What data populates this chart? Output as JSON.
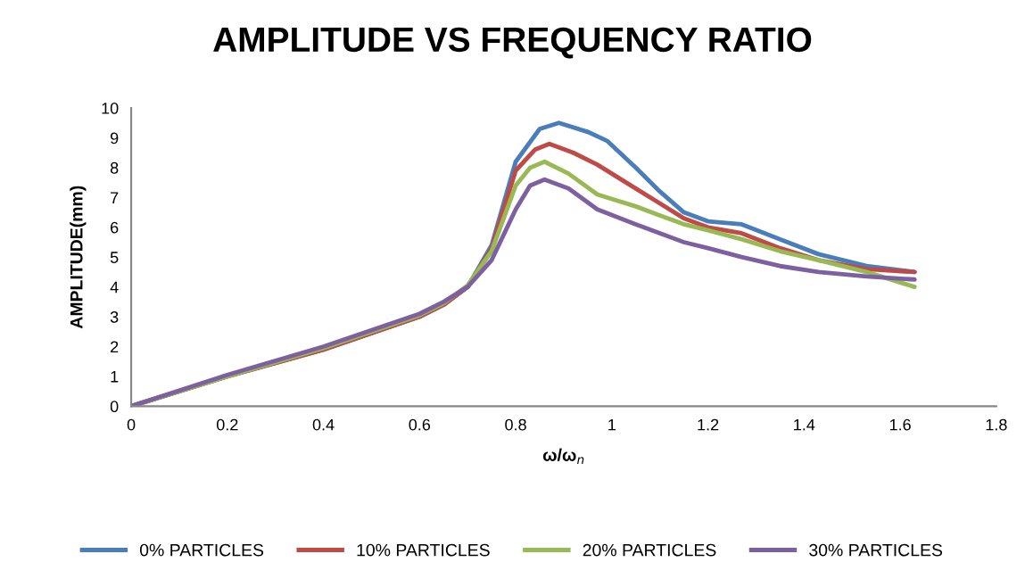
{
  "chart_data": {
    "type": "line",
    "title": "AMPLITUDE VS FREQUENCY RATIO",
    "xlabel": "ω/ω$_{n}$",
    "ylabel": "AMPLITUDE(mm)",
    "xlim": [
      0,
      1.8
    ],
    "xticks": [
      0,
      0.2,
      0.4,
      0.6,
      0.8,
      1,
      1.2,
      1.4,
      1.6,
      1.8
    ],
    "ylim": [
      0,
      10
    ],
    "yticks": [
      0,
      1,
      2,
      3,
      4,
      5,
      6,
      7,
      8,
      9,
      10
    ],
    "grid": false,
    "legend": "bottom",
    "marker": "none",
    "line_style": "solid",
    "series": [
      {
        "name": "0% PARTICLES",
        "color": "#4a7ebb",
        "x": [
          0,
          0.2,
          0.4,
          0.6,
          0.65,
          0.7,
          0.75,
          0.8,
          0.85,
          0.89,
          0.95,
          0.99,
          1.05,
          1.1,
          1.15,
          1.2,
          1.27,
          1.35,
          1.43,
          1.53,
          1.63
        ],
        "values": [
          0,
          1.0,
          1.9,
          3.0,
          3.4,
          4.0,
          5.4,
          8.2,
          9.3,
          9.5,
          9.2,
          8.9,
          8.0,
          7.2,
          6.5,
          6.2,
          6.1,
          5.6,
          5.1,
          4.7,
          4.5
        ]
      },
      {
        "name": "10% PARTICLES",
        "color": "#be4b48",
        "x": [
          0,
          0.2,
          0.4,
          0.6,
          0.65,
          0.7,
          0.75,
          0.8,
          0.84,
          0.87,
          0.92,
          0.97,
          1.05,
          1.1,
          1.15,
          1.2,
          1.27,
          1.35,
          1.43,
          1.53,
          1.63
        ],
        "values": [
          0,
          1.0,
          1.9,
          3.0,
          3.4,
          4.0,
          5.3,
          7.9,
          8.6,
          8.8,
          8.5,
          8.1,
          7.3,
          6.8,
          6.3,
          6.0,
          5.8,
          5.3,
          4.9,
          4.6,
          4.5
        ]
      },
      {
        "name": "20% PARTICLES",
        "color": "#98b954",
        "x": [
          0,
          0.2,
          0.4,
          0.6,
          0.65,
          0.7,
          0.75,
          0.8,
          0.83,
          0.86,
          0.91,
          0.97,
          1.05,
          1.1,
          1.15,
          1.2,
          1.27,
          1.35,
          1.43,
          1.53,
          1.63
        ],
        "values": [
          0,
          1.0,
          1.95,
          3.05,
          3.45,
          4.05,
          5.2,
          7.4,
          8.0,
          8.2,
          7.8,
          7.1,
          6.7,
          6.4,
          6.1,
          5.9,
          5.6,
          5.2,
          4.9,
          4.5,
          4.0
        ]
      },
      {
        "name": "30% PARTICLES",
        "color": "#7d60a0",
        "x": [
          0,
          0.2,
          0.4,
          0.6,
          0.65,
          0.7,
          0.75,
          0.8,
          0.83,
          0.86,
          0.91,
          0.97,
          1.05,
          1.1,
          1.15,
          1.2,
          1.27,
          1.35,
          1.43,
          1.53,
          1.63
        ],
        "values": [
          0,
          1.05,
          2.0,
          3.1,
          3.5,
          4.0,
          4.9,
          6.6,
          7.4,
          7.6,
          7.3,
          6.6,
          6.1,
          5.8,
          5.5,
          5.3,
          5.0,
          4.7,
          4.5,
          4.35,
          4.25
        ]
      }
    ]
  }
}
